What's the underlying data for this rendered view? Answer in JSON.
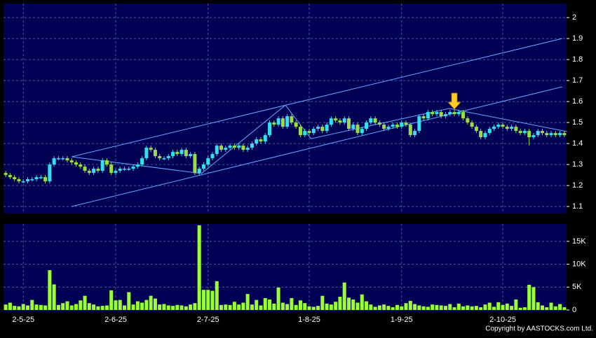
{
  "chart_data": {
    "type": "candlestick",
    "source": "Copyright by AASTOCKS.com Ltd.",
    "categories": [
      null,
      null,
      null,
      null,
      "2-5-25",
      null,
      null,
      null,
      null,
      null,
      null,
      null,
      null,
      null,
      null,
      null,
      null,
      null,
      null,
      null,
      null,
      null,
      null,
      null,
      null,
      "2-6-25",
      null,
      null,
      null,
      null,
      null,
      null,
      null,
      null,
      null,
      null,
      null,
      null,
      null,
      null,
      null,
      null,
      null,
      null,
      null,
      null,
      "2-7-25",
      null,
      null,
      null,
      null,
      null,
      null,
      null,
      null,
      null,
      null,
      null,
      null,
      null,
      null,
      null,
      null,
      null,
      null,
      null,
      null,
      null,
      null,
      "1-8-25",
      null,
      null,
      null,
      null,
      null,
      null,
      null,
      null,
      null,
      null,
      null,
      null,
      null,
      null,
      null,
      null,
      null,
      null,
      null,
      null,
      "1-9-25",
      null,
      null,
      null,
      null,
      null,
      null,
      null,
      null,
      null,
      null,
      null,
      null,
      null,
      null,
      null,
      null,
      null,
      null,
      null,
      null,
      null,
      null,
      "2-10-25",
      null,
      null,
      null,
      null,
      null,
      null,
      null,
      null,
      null,
      null,
      null,
      null,
      null,
      null
    ],
    "open": [
      1.26,
      1.25,
      1.24,
      1.23,
      1.22,
      1.22,
      1.23,
      1.23,
      1.24,
      1.24,
      1.22,
      1.3,
      1.33,
      1.33,
      1.33,
      1.32,
      1.31,
      1.3,
      1.29,
      1.27,
      1.26,
      1.28,
      1.27,
      1.32,
      1.3,
      1.26,
      1.27,
      1.28,
      1.28,
      1.28,
      1.29,
      1.3,
      1.33,
      1.38,
      1.37,
      1.34,
      1.33,
      1.33,
      1.34,
      1.36,
      1.35,
      1.37,
      1.34,
      1.35,
      1.26,
      1.28,
      1.3,
      1.33,
      1.35,
      1.39,
      1.37,
      1.38,
      1.39,
      1.38,
      1.39,
      1.37,
      1.38,
      1.4,
      1.42,
      1.41,
      1.44,
      1.5,
      1.49,
      1.52,
      1.48,
      1.53,
      1.5,
      1.48,
      1.44,
      1.46,
      1.45,
      1.47,
      1.48,
      1.46,
      1.49,
      1.52,
      1.51,
      1.5,
      1.52,
      1.47,
      1.49,
      1.45,
      1.47,
      1.5,
      1.52,
      1.5,
      1.49,
      1.47,
      1.48,
      1.49,
      1.48,
      1.5,
      1.49,
      1.44,
      1.46,
      1.53,
      1.52,
      1.55,
      1.54,
      1.55,
      1.53,
      1.54,
      1.55,
      1.54,
      1.55,
      1.52,
      1.5,
      1.48,
      1.46,
      1.43,
      1.45,
      1.47,
      1.48,
      1.49,
      1.48,
      1.47,
      1.48,
      1.46,
      1.45,
      1.46,
      1.43,
      1.44,
      1.46,
      1.45,
      1.44,
      1.45,
      1.44,
      1.45
    ],
    "high": [
      1.27,
      1.26,
      1.25,
      1.24,
      1.23,
      1.24,
      1.24,
      1.25,
      1.25,
      1.25,
      1.31,
      1.34,
      1.34,
      1.34,
      1.34,
      1.33,
      1.32,
      1.31,
      1.3,
      1.28,
      1.29,
      1.29,
      1.33,
      1.33,
      1.31,
      1.28,
      1.29,
      1.29,
      1.29,
      1.3,
      1.31,
      1.34,
      1.39,
      1.39,
      1.38,
      1.35,
      1.34,
      1.35,
      1.37,
      1.37,
      1.38,
      1.38,
      1.36,
      1.36,
      1.29,
      1.31,
      1.34,
      1.36,
      1.4,
      1.4,
      1.39,
      1.4,
      1.4,
      1.4,
      1.4,
      1.39,
      1.41,
      1.43,
      1.43,
      1.45,
      1.51,
      1.51,
      1.53,
      1.53,
      1.54,
      1.54,
      1.51,
      1.49,
      1.47,
      1.47,
      1.48,
      1.49,
      1.49,
      1.5,
      1.53,
      1.53,
      1.52,
      1.53,
      1.53,
      1.5,
      1.5,
      1.48,
      1.51,
      1.53,
      1.53,
      1.51,
      1.5,
      1.49,
      1.5,
      1.5,
      1.51,
      1.51,
      1.5,
      1.47,
      1.54,
      1.54,
      1.56,
      1.56,
      1.56,
      1.56,
      1.55,
      1.56,
      1.56,
      1.56,
      1.56,
      1.53,
      1.51,
      1.49,
      1.47,
      1.46,
      1.48,
      1.49,
      1.5,
      1.5,
      1.49,
      1.49,
      1.49,
      1.47,
      1.47,
      1.47,
      1.45,
      1.47,
      1.47,
      1.46,
      1.46,
      1.46,
      1.46,
      1.46
    ],
    "low": [
      1.24,
      1.23,
      1.22,
      1.21,
      1.21,
      1.21,
      1.22,
      1.22,
      1.23,
      1.21,
      1.21,
      1.29,
      1.32,
      1.32,
      1.31,
      1.3,
      1.29,
      1.28,
      1.26,
      1.25,
      1.25,
      1.26,
      1.26,
      1.29,
      1.25,
      1.25,
      1.26,
      1.27,
      1.27,
      1.27,
      1.28,
      1.29,
      1.32,
      1.36,
      1.33,
      1.32,
      1.32,
      1.32,
      1.33,
      1.34,
      1.34,
      1.33,
      1.33,
      1.25,
      1.25,
      1.27,
      1.29,
      1.32,
      1.34,
      1.36,
      1.36,
      1.37,
      1.37,
      1.37,
      1.36,
      1.36,
      1.37,
      1.39,
      1.4,
      1.4,
      1.43,
      1.48,
      1.48,
      1.47,
      1.47,
      1.49,
      1.47,
      1.43,
      1.43,
      1.44,
      1.44,
      1.46,
      1.45,
      1.45,
      1.48,
      1.5,
      1.49,
      1.49,
      1.46,
      1.46,
      1.44,
      1.44,
      1.46,
      1.49,
      1.49,
      1.48,
      1.46,
      1.46,
      1.47,
      1.47,
      1.47,
      1.48,
      1.43,
      1.43,
      1.45,
      1.51,
      1.51,
      1.53,
      1.53,
      1.52,
      1.52,
      1.53,
      1.53,
      1.53,
      1.51,
      1.49,
      1.47,
      1.45,
      1.42,
      1.42,
      1.44,
      1.46,
      1.47,
      1.47,
      1.46,
      1.46,
      1.45,
      1.44,
      1.44,
      1.39,
      1.42,
      1.43,
      1.44,
      1.43,
      1.43,
      1.43,
      1.43,
      1.43
    ],
    "close": [
      1.25,
      1.24,
      1.23,
      1.22,
      1.22,
      1.23,
      1.23,
      1.24,
      1.24,
      1.22,
      1.3,
      1.33,
      1.33,
      1.33,
      1.32,
      1.31,
      1.3,
      1.29,
      1.27,
      1.26,
      1.28,
      1.27,
      1.32,
      1.3,
      1.26,
      1.27,
      1.28,
      1.28,
      1.28,
      1.29,
      1.3,
      1.33,
      1.38,
      1.37,
      1.34,
      1.33,
      1.33,
      1.34,
      1.36,
      1.35,
      1.37,
      1.34,
      1.35,
      1.26,
      1.28,
      1.3,
      1.33,
      1.35,
      1.39,
      1.37,
      1.38,
      1.39,
      1.38,
      1.39,
      1.37,
      1.38,
      1.4,
      1.42,
      1.41,
      1.44,
      1.5,
      1.49,
      1.52,
      1.48,
      1.53,
      1.5,
      1.48,
      1.44,
      1.46,
      1.45,
      1.47,
      1.48,
      1.46,
      1.49,
      1.52,
      1.51,
      1.5,
      1.52,
      1.47,
      1.49,
      1.45,
      1.47,
      1.5,
      1.52,
      1.5,
      1.49,
      1.47,
      1.48,
      1.49,
      1.48,
      1.5,
      1.49,
      1.44,
      1.46,
      1.53,
      1.52,
      1.55,
      1.54,
      1.55,
      1.53,
      1.54,
      1.55,
      1.54,
      1.55,
      1.52,
      1.5,
      1.48,
      1.46,
      1.43,
      1.45,
      1.47,
      1.48,
      1.49,
      1.48,
      1.47,
      1.48,
      1.46,
      1.45,
      1.46,
      1.43,
      1.44,
      1.46,
      1.45,
      1.44,
      1.45,
      1.44,
      1.45,
      1.44
    ],
    "volume": [
      1200,
      1600,
      900,
      800,
      1300,
      1000,
      2200,
      1200,
      1100,
      1000,
      8700,
      5600,
      1100,
      1500,
      1900,
      1000,
      1300,
      2100,
      3100,
      1500,
      1200,
      800,
      900,
      1000,
      4300,
      2100,
      2200,
      1000,
      3900,
      1200,
      1900,
      1600,
      2200,
      3100,
      2500,
      1200,
      1300,
      1000,
      900,
      1100,
      1000,
      800,
      1200,
      1500,
      18500,
      4400,
      4400,
      4200,
      6300,
      1100,
      1200,
      1100,
      1800,
      1200,
      1600,
      3500,
      1200,
      2200,
      1000,
      2600,
      2300,
      1400,
      4900,
      1600,
      1300,
      2600,
      1100,
      2100,
      1500,
      800,
      700,
      900,
      3100,
      1400,
      1200,
      1800,
      2900,
      6000,
      2700,
      2300,
      1600,
      3400,
      1900,
      1200,
      700,
      1000,
      1200,
      900,
      600,
      1100,
      800,
      1500,
      2000,
      1300,
      1000,
      800,
      700,
      1200,
      1100,
      1000,
      900,
      1300,
      600,
      1400,
      800,
      1000,
      800,
      900,
      600,
      1200,
      1600,
      700,
      1700,
      1100,
      1400,
      900,
      2300,
      500,
      600,
      5500,
      5000,
      1700,
      1000,
      600,
      1600,
      800,
      1300,
      600
    ],
    "up_color": "#33dff0",
    "down_color": "#99dd44",
    "volume_color": "#99ff33",
    "ylim": [
      1.067,
      2.067
    ],
    "yticks": [
      1.1,
      1.2,
      1.3,
      1.4,
      1.5,
      1.6,
      1.7,
      1.8,
      1.9,
      2
    ],
    "vlim": [
      0,
      18800
    ],
    "vticks": [
      0,
      {
        "value": 5000,
        "label": "5K"
      },
      {
        "value": 10000,
        "label": "10K"
      },
      {
        "value": 15000,
        "label": "15K"
      }
    ],
    "grid": true,
    "trend_color": "#66aaff",
    "trend_lines": [
      {
        "x": [
          15,
          126.5
        ],
        "y": [
          1.1,
          1.67
        ]
      },
      {
        "x": [
          15,
          126.5
        ],
        "y": [
          1.337,
          1.9
        ]
      },
      {
        "x": [
          15,
          44.5,
          63.6,
          69.4,
          100.8,
          127.6
        ],
        "y": [
          1.337,
          1.257,
          1.583,
          1.423,
          1.567,
          1.457
        ]
      }
    ]
  }
}
